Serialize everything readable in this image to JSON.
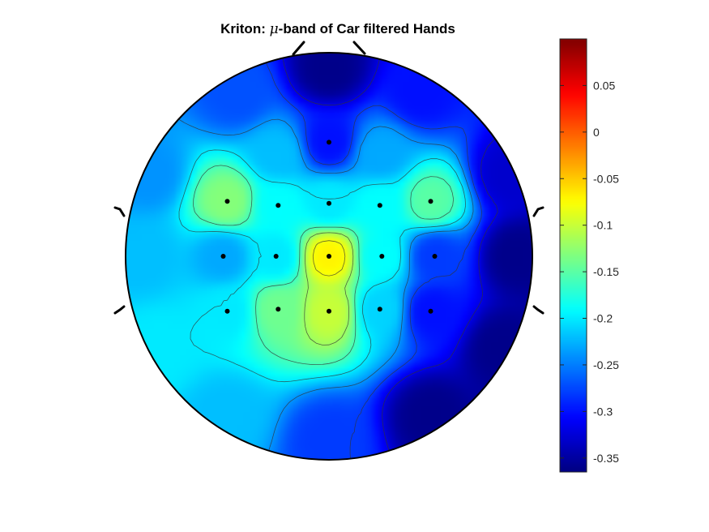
{
  "chart_data": {
    "type": "heatmap",
    "subtype": "eeg-topographic-map",
    "title": {
      "prefix": "Kriton: ",
      "symbol": "μ",
      "suffix": "-band of Car filtered Hands"
    },
    "colormap": "jet",
    "clim": [
      -0.365,
      0.1
    ],
    "colorbar": {
      "ticks": [
        0.05,
        0,
        -0.05,
        -0.1,
        -0.15,
        -0.2,
        -0.25,
        -0.3,
        -0.35
      ],
      "tick_labels": [
        "0.05",
        "0",
        "-0.05",
        "-0.1",
        "-0.15",
        "-0.2",
        "-0.25",
        "-0.3",
        "-0.35"
      ],
      "location": "right"
    },
    "electrodes": [
      {
        "x": 0.0,
        "y": 0.56,
        "value": -0.3
      },
      {
        "x": -0.5,
        "y": 0.27,
        "value": -0.13
      },
      {
        "x": -0.25,
        "y": 0.25,
        "value": -0.19
      },
      {
        "x": 0.0,
        "y": 0.26,
        "value": -0.2
      },
      {
        "x": 0.25,
        "y": 0.25,
        "value": -0.19
      },
      {
        "x": 0.5,
        "y": 0.27,
        "value": -0.15
      },
      {
        "x": -0.52,
        "y": 0.0,
        "value": -0.23
      },
      {
        "x": -0.26,
        "y": 0.0,
        "value": -0.2
      },
      {
        "x": 0.0,
        "y": 0.0,
        "value": -0.07
      },
      {
        "x": 0.26,
        "y": 0.0,
        "value": -0.19
      },
      {
        "x": 0.52,
        "y": 0.0,
        "value": -0.28
      },
      {
        "x": -0.5,
        "y": -0.27,
        "value": -0.2
      },
      {
        "x": -0.25,
        "y": -0.26,
        "value": -0.14
      },
      {
        "x": 0.0,
        "y": -0.27,
        "value": -0.1
      },
      {
        "x": 0.25,
        "y": -0.26,
        "value": -0.21
      },
      {
        "x": 0.5,
        "y": -0.27,
        "value": -0.3
      },
      {
        "x": 0.0,
        "y": 0.92,
        "value": -0.36
      },
      {
        "x": -0.45,
        "y": 0.8,
        "value": -0.27
      },
      {
        "x": 0.45,
        "y": 0.8,
        "value": -0.3
      },
      {
        "x": -0.88,
        "y": 0.4,
        "value": -0.24
      },
      {
        "x": 0.88,
        "y": 0.4,
        "value": -0.33
      },
      {
        "x": -0.92,
        "y": 0.0,
        "value": -0.22
      },
      {
        "x": 0.92,
        "y": 0.0,
        "value": -0.36
      },
      {
        "x": -0.85,
        "y": -0.45,
        "value": -0.2
      },
      {
        "x": 0.85,
        "y": -0.45,
        "value": -0.36
      },
      {
        "x": -0.5,
        "y": -0.78,
        "value": -0.22
      },
      {
        "x": 0.5,
        "y": -0.78,
        "value": -0.36
      },
      {
        "x": 0.0,
        "y": -0.9,
        "value": -0.28
      },
      {
        "x": -0.25,
        "y": 0.5,
        "value": -0.22
      },
      {
        "x": 0.25,
        "y": 0.5,
        "value": -0.23
      }
    ],
    "shown_electrodes": [
      0,
      1,
      2,
      3,
      4,
      5,
      6,
      7,
      8,
      9,
      10,
      11,
      12,
      13,
      14,
      15
    ]
  }
}
